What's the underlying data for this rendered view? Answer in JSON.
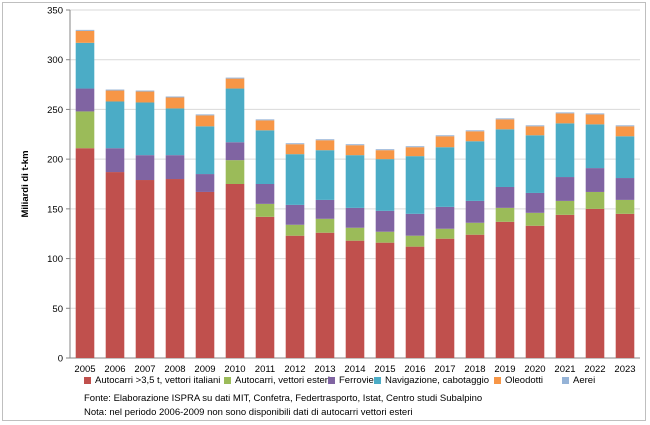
{
  "chart_data": {
    "type": "bar",
    "stacked": true,
    "ylabel": "Miliardi di t-km",
    "ylim": [
      0,
      350
    ],
    "yticks": [
      "0",
      "50",
      "100",
      "150",
      "200",
      "250",
      "300",
      "350"
    ],
    "grid": true,
    "legend_position": "bottom",
    "categories": [
      "2005",
      "2006",
      "2007",
      "2008",
      "2009",
      "2010",
      "2011",
      "2012",
      "2013",
      "2014",
      "2015",
      "2016",
      "2017",
      "2018",
      "2019",
      "2020",
      "2021",
      "2022",
      "2023"
    ],
    "series": [
      {
        "name": "Autocarri >3,5 t, vettori italiani",
        "color": "#c0504d",
        "values": [
          211,
          187,
          179,
          180,
          167,
          175,
          142,
          123,
          126,
          118,
          116,
          112,
          120,
          124,
          137,
          133,
          144,
          150,
          145
        ]
      },
      {
        "name": "Autocarri, vettori esteri",
        "color": "#9bbb59",
        "values": [
          37,
          0,
          0,
          0,
          0,
          24,
          13,
          11,
          14,
          13,
          11,
          11,
          10,
          12,
          14,
          13,
          14,
          17,
          14
        ]
      },
      {
        "name": "Ferrovie",
        "color": "#8064a2",
        "values": [
          23,
          24,
          25,
          24,
          18,
          18,
          20,
          20,
          19,
          20,
          21,
          22,
          22,
          22,
          21,
          20,
          24,
          24,
          22
        ]
      },
      {
        "name": "Navigazione, cabotaggio",
        "color": "#4bacc6",
        "values": [
          46,
          47,
          53,
          47,
          48,
          54,
          54,
          51,
          50,
          53,
          52,
          58,
          60,
          60,
          58,
          58,
          54,
          44,
          42
        ]
      },
      {
        "name": "Oleodotti",
        "color": "#f79646",
        "values": [
          12,
          11,
          11,
          11,
          11,
          10,
          10,
          10,
          10,
          10,
          9,
          9,
          11,
          10,
          10,
          9,
          10,
          10,
          10
        ]
      },
      {
        "name": "Aerei",
        "color": "#95b3d7",
        "values": [
          1,
          1,
          1,
          1,
          1,
          1,
          1,
          1,
          1,
          1,
          1,
          1,
          1,
          1,
          1,
          1,
          1,
          1,
          1
        ]
      }
    ],
    "notes": [
      "Fonte: Elaborazione ISPRA su dati MIT, Confetra, Federtrasporto, Istat, Centro studi Subalpino",
      "Nota: nel periodo 2006-2009 non sono disponibili dati di autocarri vettori esteri"
    ]
  }
}
